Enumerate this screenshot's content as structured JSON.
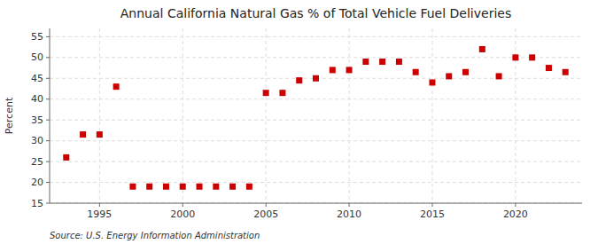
{
  "chart_data": {
    "type": "scatter",
    "title": "Annual California Natural Gas % of Total Vehicle Fuel Deliveries",
    "ylabel": "Percent",
    "source": "Source: U.S. Energy Information Administration",
    "x": [
      1993,
      1994,
      1995,
      1996,
      1997,
      1998,
      1999,
      2000,
      2001,
      2002,
      2003,
      2004,
      2005,
      2006,
      2007,
      2008,
      2009,
      2010,
      2011,
      2012,
      2013,
      2014,
      2015,
      2016,
      2017,
      2018,
      2019,
      2020,
      2021,
      2022,
      2023
    ],
    "values": [
      26.0,
      31.5,
      31.5,
      43.0,
      19.0,
      19.0,
      19.0,
      19.0,
      19.0,
      19.0,
      19.0,
      19.0,
      41.5,
      41.5,
      44.5,
      45.0,
      47.0,
      47.0,
      49.0,
      49.0,
      49.0,
      46.5,
      44.0,
      45.5,
      46.5,
      52.0,
      45.5,
      50.0,
      50.0,
      47.5,
      46.5
    ],
    "xlim": [
      1992.0,
      2024.0
    ],
    "xticks": [
      1995,
      2000,
      2005,
      2010,
      2015,
      2020
    ],
    "ylim": [
      15,
      57
    ],
    "yticks": [
      15,
      20,
      25,
      30,
      35,
      40,
      45,
      50,
      55
    ],
    "color": "#cc0000",
    "marker": "square",
    "grid": true
  }
}
